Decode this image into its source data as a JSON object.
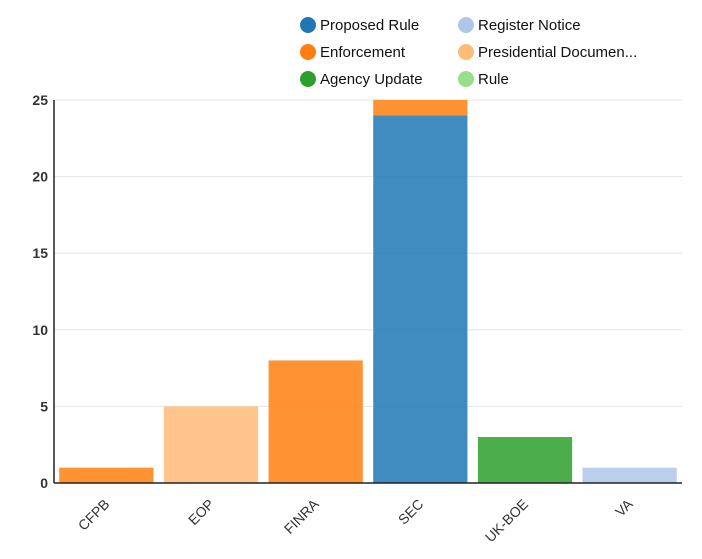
{
  "chart_data": {
    "type": "bar",
    "stacked": true,
    "categories": [
      "CFPB",
      "EOP",
      "FINRA",
      "SEC",
      "UK-BOE",
      "VA"
    ],
    "series": [
      {
        "name": "Proposed Rule",
        "color": "#1f77b4",
        "values": [
          0,
          0,
          0,
          24,
          0,
          0
        ]
      },
      {
        "name": "Register Notice",
        "color": "#aec7e8",
        "values": [
          0,
          0,
          0,
          0,
          0,
          1
        ]
      },
      {
        "name": "Enforcement",
        "color": "#ff7f0e",
        "values": [
          1,
          0,
          8,
          1,
          0,
          0
        ]
      },
      {
        "name": "Presidential Documen...",
        "color": "#ffbb78",
        "values": [
          0,
          5,
          0,
          0,
          0,
          0
        ]
      },
      {
        "name": "Agency Update",
        "color": "#2ca02c",
        "values": [
          0,
          0,
          0,
          0,
          3,
          0
        ]
      },
      {
        "name": "Rule",
        "color": "#98df8a",
        "values": [
          0,
          0,
          0,
          0,
          0,
          0
        ]
      }
    ],
    "ylim": [
      0,
      25
    ],
    "yticks": [
      0,
      5,
      10,
      15,
      20,
      25
    ],
    "grid": true,
    "legend_position": "top",
    "title": "",
    "xlabel": "",
    "ylabel": ""
  }
}
